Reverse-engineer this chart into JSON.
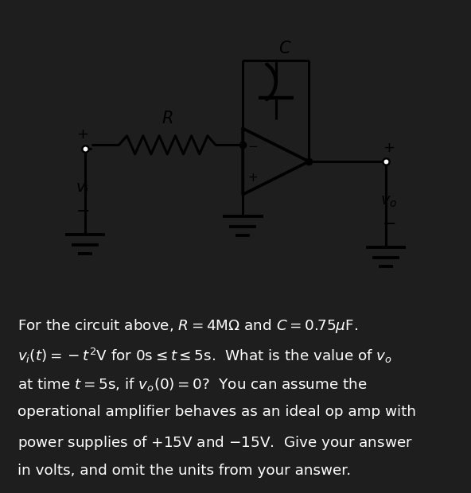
{
  "background_color": "#1e1e1e",
  "panel_color": "#ffffff",
  "line_color": "#000000",
  "text_color": "#ffffff",
  "description_lines": [
    "For the circuit above, $R = 4\\mathrm{M}\\Omega$ and $C = 0.75\\mu\\mathrm{F}$.",
    "$v_i(t) = -t^2\\mathrm{V}$ for $0\\mathrm{s} \\leq t \\leq 5\\mathrm{s}$.  What is the value of $v_o$",
    "at time $t = 5\\mathrm{s}$, if $v_o(0) = 0$?  You can assume the",
    "operational amplifier behaves as an ideal op amp with",
    "power supplies of $+15\\mathrm{V}$ and $-15\\mathrm{V}$.  Give your answer",
    "in volts, and omit the units from your answer."
  ],
  "font_size_text": 13.2
}
